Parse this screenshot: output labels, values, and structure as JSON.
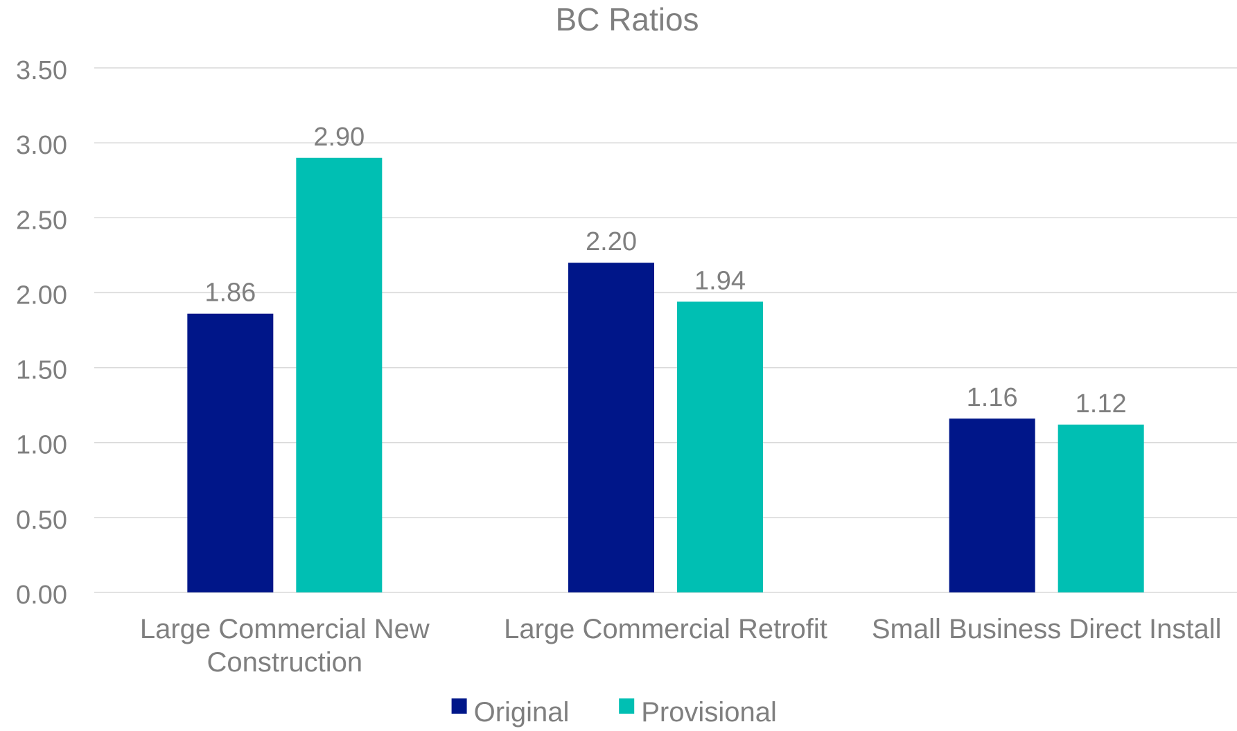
{
  "chart_data": {
    "type": "bar",
    "title": "BC Ratios",
    "categories": [
      [
        "Large Commercial New",
        "Construction"
      ],
      [
        "Large Commercial Retrofit"
      ],
      [
        "Small Business Direct Install"
      ]
    ],
    "series": [
      {
        "name": "Original",
        "values": [
          1.86,
          2.2,
          1.16
        ],
        "labels": [
          "1.86",
          "2.20",
          "1.16"
        ],
        "color": "#001689"
      },
      {
        "name": "Provisional",
        "values": [
          2.9,
          1.94,
          1.12
        ],
        "labels": [
          "2.90",
          "1.94",
          "1.12"
        ],
        "color": "#00bfb3"
      }
    ],
    "ylim": [
      0,
      3.5
    ],
    "yticks": [
      "0.00",
      "0.50",
      "1.00",
      "1.50",
      "2.00",
      "2.50",
      "3.00",
      "3.50"
    ],
    "grid": true,
    "legend": "bottom",
    "colors": {
      "text": "#7f7f7f",
      "grid": "#d9d9d9"
    }
  }
}
